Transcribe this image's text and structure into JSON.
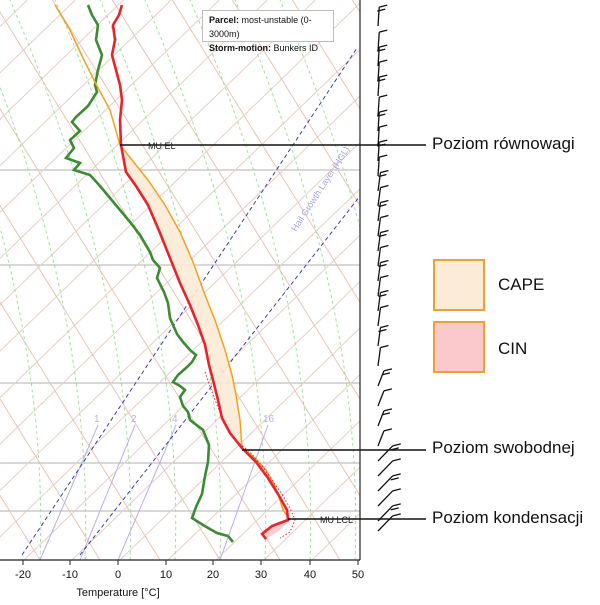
{
  "parcel_box": {
    "parcel_key": "Parcel:",
    "parcel_value": "most-unstable (0-3000m)",
    "storm_key": "Storm-motion:",
    "storm_value": "Bunkers ID"
  },
  "axis": {
    "xlabel": "Temperature [°C]",
    "ticks": [
      "-20",
      "-10",
      "0",
      "10",
      "20",
      "30",
      "40",
      "50"
    ]
  },
  "mixing_ratio_labels": [
    "1",
    "2",
    "4",
    "16"
  ],
  "inline_labels": {
    "mu_el": "MU EL",
    "mu_lcl": "MU LCL",
    "hgl": "Hail Growth Layer (HGL)"
  },
  "levels": {
    "equilibrium": "Poziom równowagi",
    "free_convection": "Poziom swobodnej",
    "condensation": "Poziom kondensacji"
  },
  "legend": {
    "cape_label": "CAPE",
    "cin_label": "CIN",
    "cape_color": "#fcebd6",
    "cin_color": "#fbc9cc",
    "border_color": "#f0a030"
  },
  "colors": {
    "temperature": "#e8232a",
    "dewpoint": "#3a8b32",
    "parcel": "#f2a21e",
    "hgl_lines": "#3b3bb0",
    "isotherm": "#e6cfc4",
    "dry_adiabat": "#e8c4b8",
    "moist_adiabat": "#9fe09f",
    "mixing_ratio": "#b5b1e6"
  }
}
